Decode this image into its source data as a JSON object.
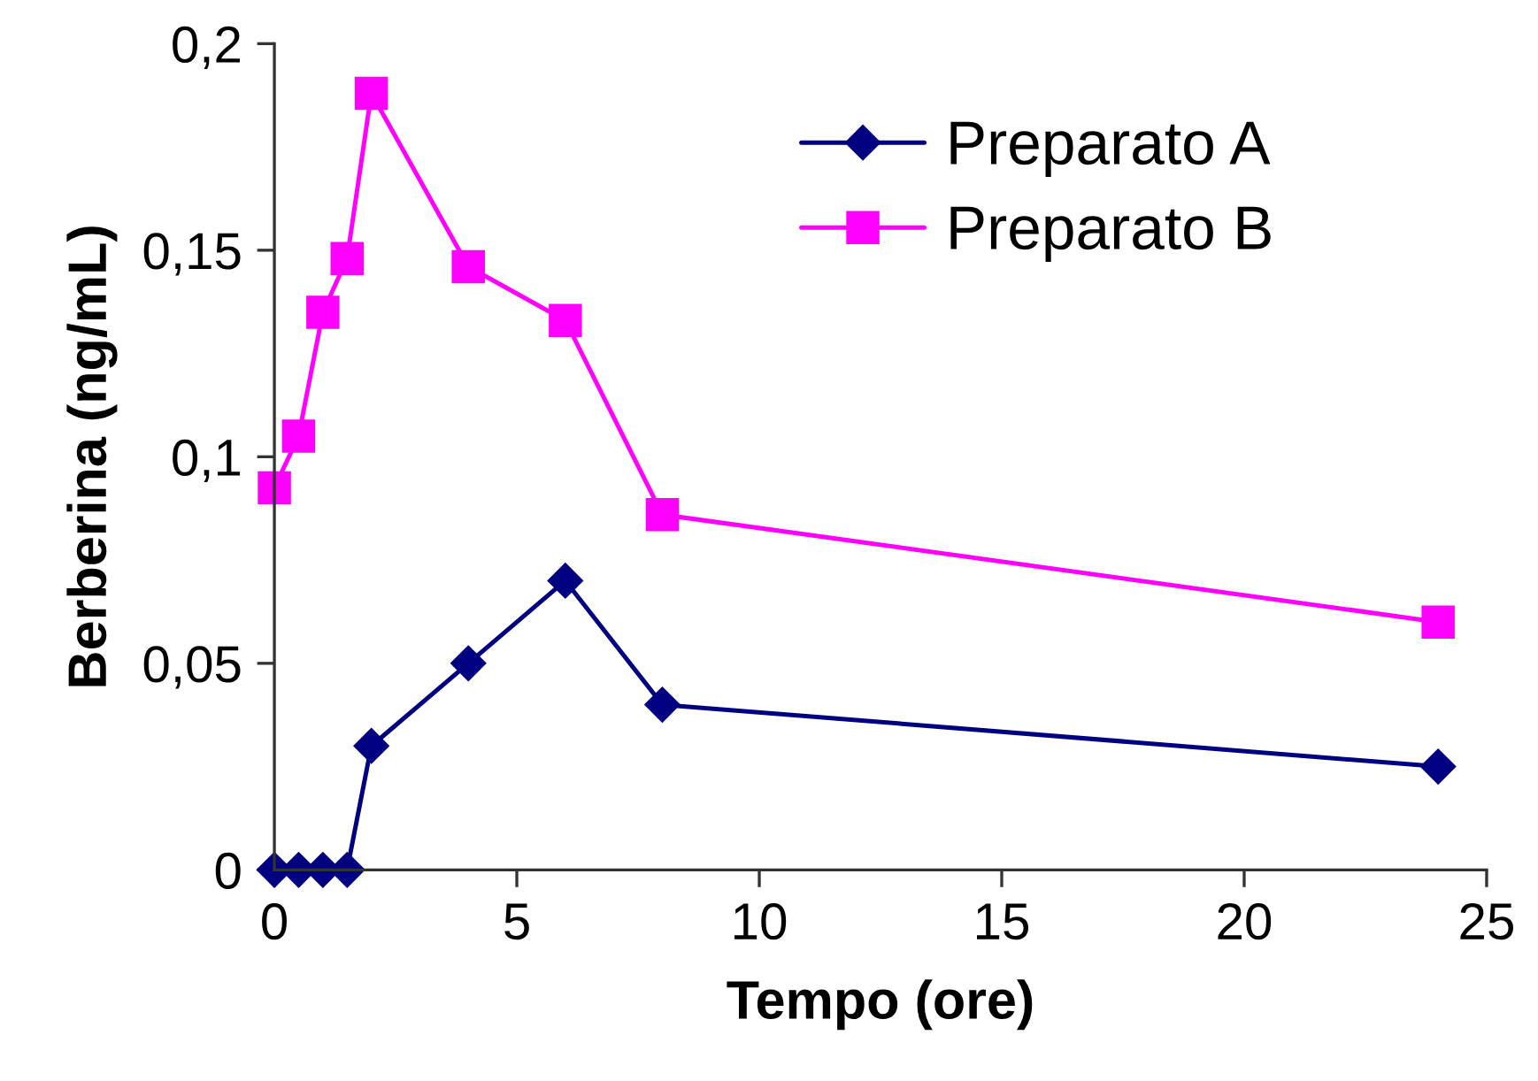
{
  "chart_data": {
    "type": "line",
    "xlabel": "Tempo (ore)",
    "ylabel": "Berberina (ng/mL)",
    "x": [
      0,
      0.5,
      1,
      1.5,
      2,
      4,
      6,
      8,
      24
    ],
    "series": [
      {
        "name": "Preparato A",
        "color": "#000080",
        "marker": "diamond",
        "values": [
          0,
          0,
          0,
          0,
          0.03,
          0.05,
          0.07,
          0.04,
          0.025
        ]
      },
      {
        "name": "Preparato B",
        "color": "#ff00ff",
        "marker": "square",
        "values": [
          0.0925,
          0.105,
          0.135,
          0.148,
          0.188,
          0.146,
          0.133,
          0.086,
          0.06
        ]
      }
    ],
    "xlim": [
      0,
      25
    ],
    "xticks": [
      0,
      5,
      10,
      15,
      20,
      25
    ],
    "ylim": [
      0,
      0.2
    ],
    "yticks": [
      0,
      {
        "value": 0.05,
        "label": "0,05"
      },
      {
        "value": 0.1,
        "label": "0,1"
      },
      {
        "value": 0.15,
        "label": "0,15"
      },
      {
        "value": 0.2,
        "label": "0,2"
      }
    ],
    "grid": false,
    "legend": "top right",
    "line_style": "solid"
  }
}
